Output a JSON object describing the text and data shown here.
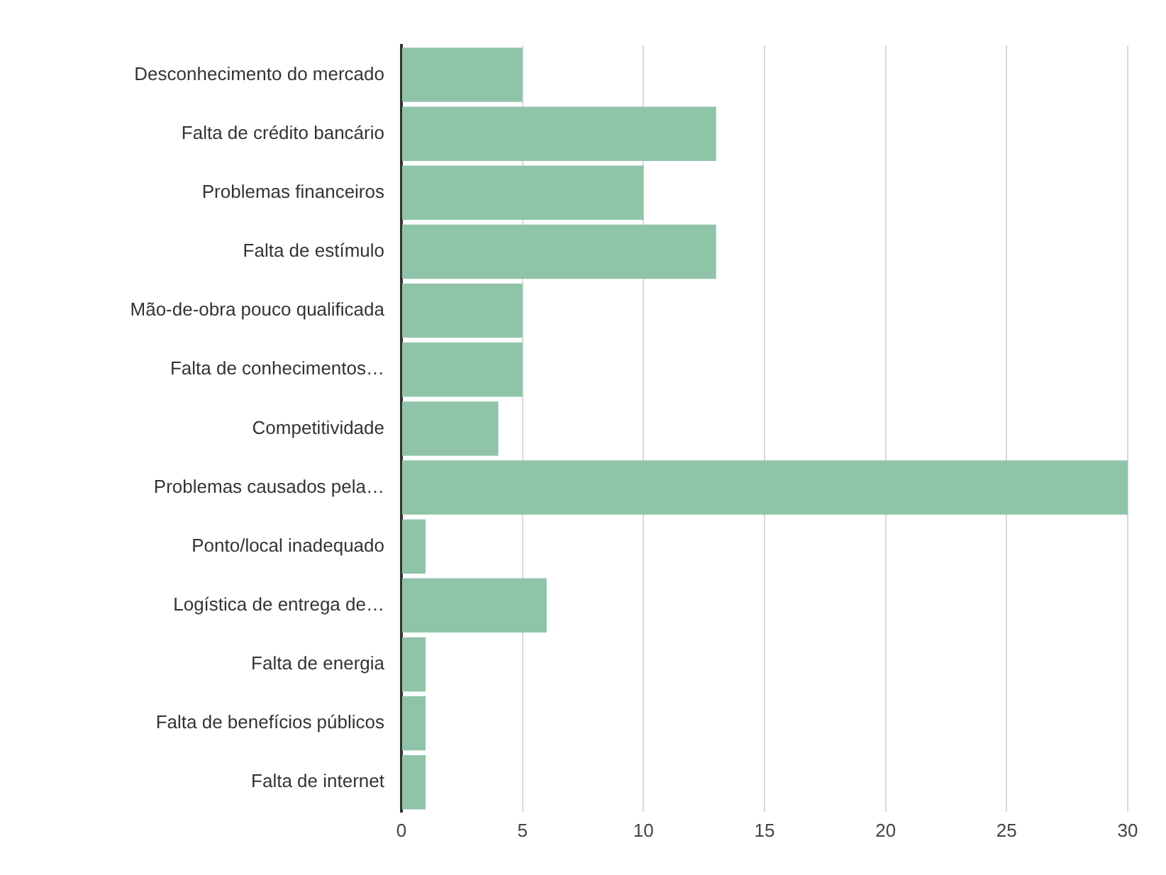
{
  "chart_data": {
    "type": "bar",
    "orientation": "horizontal",
    "categories": [
      "Desconhecimento do mercado",
      "Falta de crédito bancário",
      "Problemas financeiros",
      "Falta de estímulo",
      "Mão-de-obra pouco qualificada",
      "Falta de conhecimentos…",
      "Competitividade",
      "Problemas causados pela…",
      "Ponto/local inadequado",
      "Logística de entrega de…",
      "Falta de energia",
      "Falta de benefícios públicos",
      "Falta de internet"
    ],
    "values": [
      5,
      13,
      10,
      13,
      5,
      5,
      4,
      30,
      1,
      6,
      1,
      1,
      1
    ],
    "color": "#8fc4a9",
    "xlim": [
      0,
      30
    ],
    "xticks": [
      0,
      5,
      10,
      15,
      20,
      25,
      30
    ],
    "grid": "x",
    "legend": false
  }
}
